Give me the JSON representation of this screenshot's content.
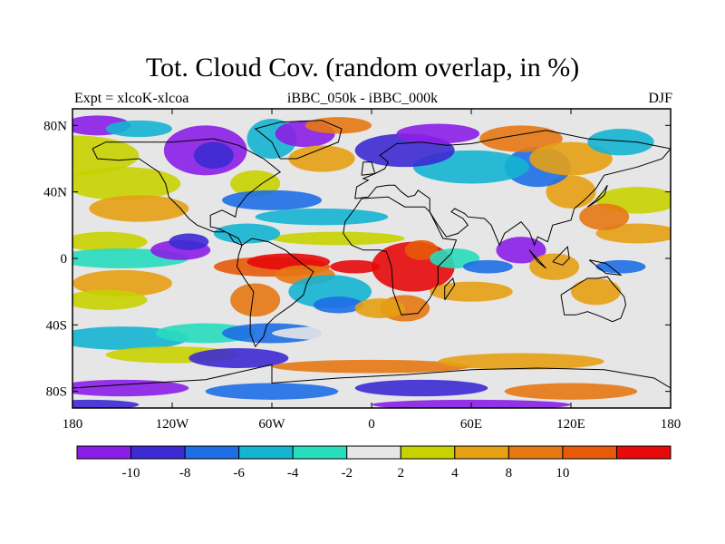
{
  "title": "Tot. Cloud Cov. (random overlap, in %)",
  "left_string": "Expt = xlcoK-xlcoa",
  "center_string": "iBBC_050k - iBBC_000k",
  "right_string": "DJF",
  "lat_labels": [
    "80N",
    "40N",
    "0",
    "40S",
    "80S"
  ],
  "lon_labels": [
    "180",
    "120W",
    "60W",
    "0",
    "60E",
    "120E",
    "180"
  ],
  "colorbar": {
    "colors": [
      "#8a1ee6",
      "#3c2ad2",
      "#1e6ee6",
      "#14b4d2",
      "#28dcbe",
      "#e6e6e6",
      "#c8d200",
      "#e6a014",
      "#e67814",
      "#e65a0a",
      "#e60a0a"
    ],
    "labels": [
      "-10",
      "-8",
      "-6",
      "-4",
      "-2",
      "2",
      "4",
      "8",
      "10"
    ]
  },
  "map_colors": {
    "land_outline": "#000000",
    "background": "#e6e6e6"
  }
}
